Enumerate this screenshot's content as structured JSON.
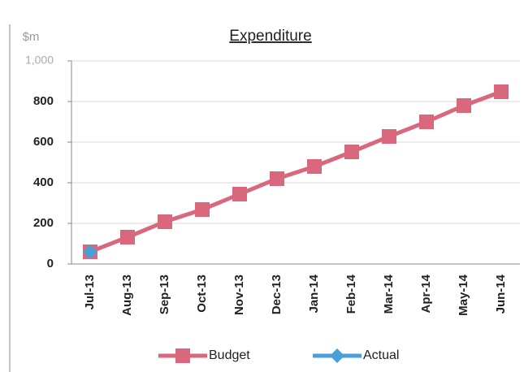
{
  "chart_data": {
    "type": "line",
    "title": "Expenditure",
    "y_label": "$m",
    "categories": [
      "Jul-13",
      "Aug-13",
      "Sep-13",
      "Oct-13",
      "Nov-13",
      "Dec-13",
      "Jan-14",
      "Feb-14",
      "Mar-14",
      "Apr-14",
      "May-14",
      "Jun-14"
    ],
    "series": [
      {
        "name": "Budget",
        "color": "#d9687c",
        "marker": "square",
        "values": [
          60,
          132,
          208,
          268,
          344,
          420,
          480,
          552,
          628,
          700,
          780,
          848
        ]
      },
      {
        "name": "Actual",
        "color": "#4a9fd8",
        "marker": "diamond",
        "values": [
          60,
          null,
          null,
          null,
          null,
          null,
          null,
          null,
          null,
          null,
          null,
          null
        ]
      }
    ],
    "ylim": [
      0,
      1000
    ],
    "yticks": [
      0,
      200,
      400,
      600,
      800,
      {
        "value": 1000,
        "label": "1,000"
      }
    ],
    "grid": true,
    "legend": "bottom"
  }
}
